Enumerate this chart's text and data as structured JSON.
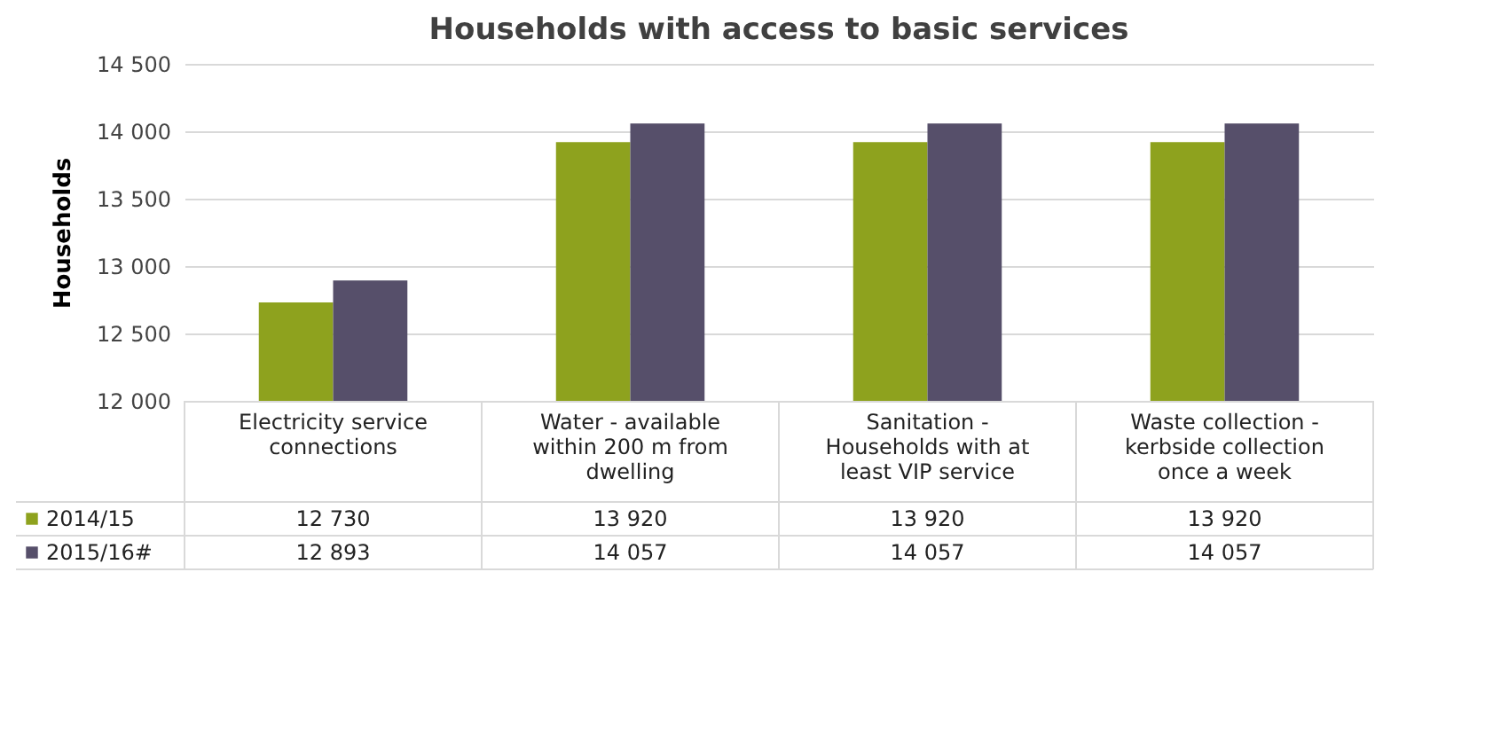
{
  "chart_data": {
    "type": "bar",
    "title": "Households with access to basic services",
    "ylabel": "Households",
    "categories": [
      "Electricity service connections",
      "Water - available within 200 m from dwelling",
      "Sanitation - Households with at least VIP service",
      "Waste collection - kerbside collection once a week"
    ],
    "series": [
      {
        "name": "2014/15",
        "color": "#8ea21e",
        "values": [
          12730,
          13920,
          13920,
          13920
        ],
        "value_labels": [
          "12 730",
          "13 920",
          "13 920",
          "13 920"
        ]
      },
      {
        "name": "2015/16#",
        "color": "#564f6a",
        "values": [
          12893,
          14057,
          14057,
          14057
        ],
        "value_labels": [
          "12 893",
          "14 057",
          "14 057",
          "14 057"
        ]
      }
    ],
    "ylim": [
      12000,
      14500
    ],
    "yticks": [
      {
        "value": 12000,
        "label": "12 000"
      },
      {
        "value": 12500,
        "label": "12 500"
      },
      {
        "value": 13000,
        "label": "13 000"
      },
      {
        "value": 13500,
        "label": "13 500"
      },
      {
        "value": 14000,
        "label": "14 000"
      },
      {
        "value": 14500,
        "label": "14 500"
      }
    ],
    "grid": "y",
    "legend": "bottom left"
  }
}
